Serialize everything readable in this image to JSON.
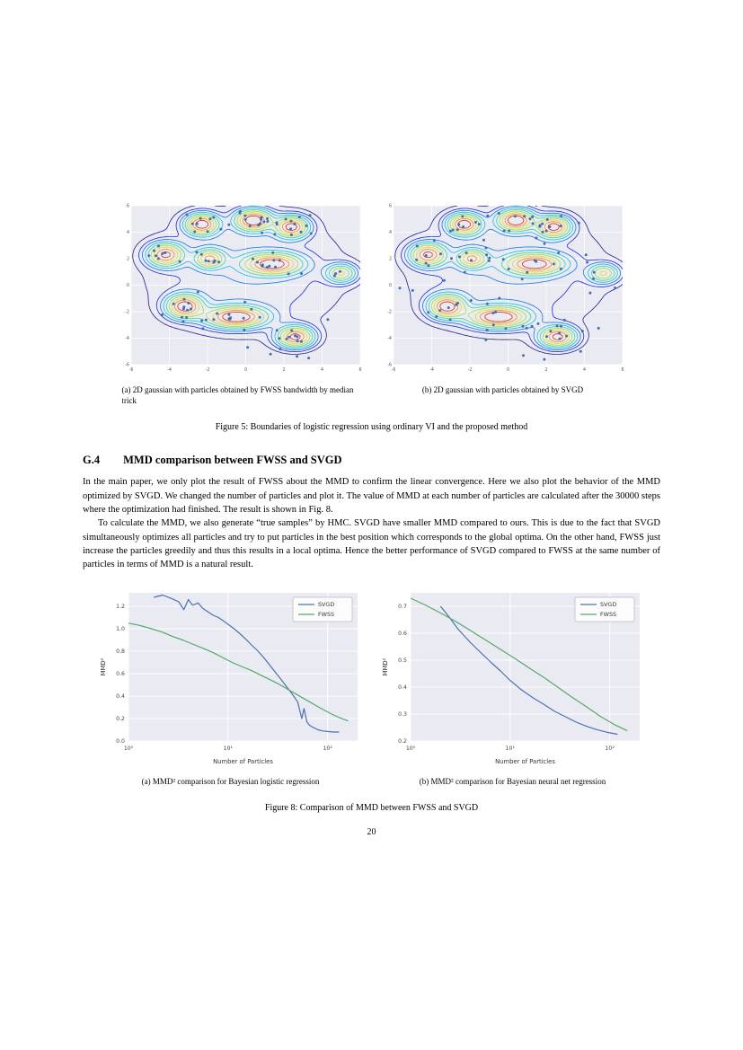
{
  "page_number": "20",
  "figure5": {
    "sub_a": "(a) 2D gaussian with particles obtained by FWSS bandwidth by median trick",
    "sub_b": "(b) 2D gaussian with particles obtained by SVGD",
    "caption": "Figure 5: Boundaries of logistic regression using ordinary VI and the proposed method"
  },
  "section": {
    "number": "G.4",
    "title": "MMD comparison between FWSS and SVGD"
  },
  "body": {
    "p1": "In the main paper, we only plot the result of FWSS about the MMD to confirm the linear convergence.  Here we also plot the behavior of the MMD optimized by SVGD. We changed the number of particles and plot it.  The value of MMD at each number of particles are calculated after the 30000 steps where the optimization had finished. The result is shown in Fig. 8.",
    "p2": "To calculate the MMD, we also generate “true samples” by HMC. SVGD have smaller MMD compared to ours. This is due to the fact that SVGD simultaneously optimizes all particles and try to put particles in the best position which corresponds to the global optima.  On the other hand, FWSS just increase the particles greedily and thus this results in a local optima.  Hence the better performance of SVGD compared to FWSS at the same number of particles in terms of MMD is a natural result."
  },
  "figure8": {
    "sub_a": "(a) MMD² comparison for Bayesian logistic regression",
    "sub_b": "(b) MMD² comparison for Bayesian neural net regression",
    "caption": "Figure 8: Comparison of MMD between FWSS and SVGD"
  },
  "chart_data": [
    {
      "type": "line",
      "title": "",
      "xlabel": "Number of Particles",
      "ylabel": "MMD²",
      "xscale": "log",
      "xlim": [
        1,
        200
      ],
      "ylim": [
        0.0,
        1.32
      ],
      "yticks": [
        0.0,
        0.2,
        0.4,
        0.6,
        0.8,
        1.0,
        1.2
      ],
      "ytick_labels": [
        "0.0",
        "0.2",
        "0.4",
        "0.6",
        "0.8",
        "1.0",
        "1.2"
      ],
      "xticks": [
        1,
        10,
        100
      ],
      "xtick_labels": [
        "10⁰",
        "10¹",
        "10²"
      ],
      "grid": true,
      "legend_position": "upper right",
      "series": [
        {
          "name": "SVGD",
          "color": "#4c72b0",
          "x": [
            1.8,
            2.2,
            2.7,
            3.2,
            3.6,
            4.0,
            4.4,
            5.0,
            5.6,
            6.3,
            7.1,
            8,
            9,
            10,
            11.5,
            13,
            15,
            17,
            20,
            23,
            26,
            30,
            34,
            39,
            44,
            50,
            55,
            58,
            62,
            66,
            72,
            80,
            90,
            100,
            115,
            130
          ],
          "y": [
            1.28,
            1.3,
            1.27,
            1.24,
            1.17,
            1.26,
            1.21,
            1.23,
            1.18,
            1.15,
            1.12,
            1.1,
            1.07,
            1.04,
            1.0,
            0.96,
            0.91,
            0.86,
            0.8,
            0.74,
            0.68,
            0.61,
            0.55,
            0.48,
            0.42,
            0.35,
            0.2,
            0.29,
            0.17,
            0.14,
            0.12,
            0.1,
            0.09,
            0.085,
            0.08,
            0.08
          ]
        },
        {
          "name": "FWSS",
          "color": "#55a868",
          "x": [
            1,
            1.3,
            1.7,
            2.2,
            2.8,
            3.5,
            4.5,
            5.5,
            7,
            9,
            11,
            14,
            17,
            21,
            26,
            32,
            40,
            50,
            60,
            75,
            90,
            110,
            130,
            160
          ],
          "y": [
            1.05,
            1.03,
            1.0,
            0.97,
            0.93,
            0.9,
            0.86,
            0.83,
            0.79,
            0.74,
            0.7,
            0.66,
            0.63,
            0.59,
            0.55,
            0.51,
            0.46,
            0.41,
            0.37,
            0.32,
            0.28,
            0.24,
            0.21,
            0.18
          ]
        }
      ]
    },
    {
      "type": "line",
      "title": "",
      "xlabel": "Number of Particles",
      "ylabel": "MMD²",
      "xscale": "log",
      "xlim": [
        1,
        200
      ],
      "ylim": [
        0.2,
        0.75
      ],
      "yticks": [
        0.2,
        0.3,
        0.4,
        0.5,
        0.6,
        0.7
      ],
      "ytick_labels": [
        "0.2",
        "0.3",
        "0.4",
        "0.5",
        "0.6",
        "0.7"
      ],
      "xticks": [
        1,
        10,
        100
      ],
      "xtick_labels": [
        "10⁰",
        "10¹",
        "10²"
      ],
      "grid": true,
      "legend_position": "upper right",
      "series": [
        {
          "name": "SVGD",
          "color": "#4c72b0",
          "x": [
            2,
            2.5,
            3,
            4,
            5,
            6.5,
            8,
            10,
            13,
            17,
            22,
            28,
            36,
            46,
            60,
            75,
            95,
            120
          ],
          "y": [
            0.7,
            0.655,
            0.615,
            0.565,
            0.53,
            0.49,
            0.46,
            0.425,
            0.39,
            0.36,
            0.335,
            0.31,
            0.29,
            0.27,
            0.253,
            0.242,
            0.232,
            0.225
          ]
        },
        {
          "name": "FWSS",
          "color": "#55a868",
          "x": [
            1,
            1.4,
            2,
            2.8,
            4,
            5.5,
            8,
            11,
            16,
            22,
            30,
            42,
            58,
            80,
            110,
            150
          ],
          "y": [
            0.73,
            0.705,
            0.675,
            0.645,
            0.61,
            0.578,
            0.54,
            0.508,
            0.468,
            0.435,
            0.4,
            0.362,
            0.328,
            0.292,
            0.262,
            0.238
          ]
        }
      ]
    }
  ],
  "contour_data": [
    {
      "name": "fwss",
      "xlim": [
        -6,
        6
      ],
      "ylim": [
        -6,
        6
      ],
      "xticks": [
        -6,
        -4,
        -2,
        0,
        2,
        4,
        6
      ],
      "yticks": [
        -6,
        -4,
        -2,
        0,
        2,
        4,
        6
      ],
      "levels": [
        0.05,
        0.1,
        0.16,
        0.24,
        0.34,
        0.46,
        0.6,
        0.75,
        0.9
      ],
      "level_colors": [
        "#282898",
        "#2233dd",
        "#1e7ae6",
        "#1fc0e8",
        "#3fd6a0",
        "#9fe04a",
        "#e8d832",
        "#f09022",
        "#d83018"
      ],
      "background": "#eaeaf2",
      "particle_color": "#3a68ad",
      "seed": 7,
      "spread_scale": 0.85,
      "clusters": [
        {
          "x": -2.3,
          "y": 4.6,
          "sx": 0.55,
          "sy": 0.5,
          "w": 1.0,
          "n": 10
        },
        {
          "x": 0.4,
          "y": 4.9,
          "sx": 0.6,
          "sy": 0.5,
          "w": 1.05,
          "n": 14
        },
        {
          "x": 2.4,
          "y": 4.4,
          "sx": 0.55,
          "sy": 0.5,
          "w": 0.95,
          "n": 12
        },
        {
          "x": -4.2,
          "y": 2.3,
          "sx": 0.6,
          "sy": 0.55,
          "w": 0.9,
          "n": 8
        },
        {
          "x": -1.9,
          "y": 2.0,
          "sx": 0.5,
          "sy": 0.45,
          "w": 0.7,
          "n": 7
        },
        {
          "x": 1.4,
          "y": 1.6,
          "sx": 0.95,
          "sy": 0.5,
          "w": 0.95,
          "n": 12
        },
        {
          "x": -3.2,
          "y": -1.6,
          "sx": 0.6,
          "sy": 0.55,
          "w": 1.0,
          "n": 12
        },
        {
          "x": -0.5,
          "y": -2.4,
          "sx": 1.0,
          "sy": 0.5,
          "w": 1.05,
          "n": 14
        },
        {
          "x": 2.6,
          "y": -3.9,
          "sx": 0.6,
          "sy": 0.5,
          "w": 0.95,
          "n": 11
        },
        {
          "x": 5.0,
          "y": 0.9,
          "sx": 0.5,
          "sy": 0.45,
          "w": 0.58,
          "n": 3
        },
        {
          "x": 0.0,
          "y": 0.9,
          "sx": 3.5,
          "sy": 3.2,
          "w": 0.16,
          "n": 0
        }
      ],
      "extra_particles": [
        [
          1.3,
          -5.2
        ],
        [
          3.3,
          -5.5
        ],
        [
          0.1,
          -4.7
        ],
        [
          4.3,
          -2.6
        ]
      ]
    },
    {
      "name": "svgd",
      "xlim": [
        -6,
        6
      ],
      "ylim": [
        -6,
        6
      ],
      "xticks": [
        -6,
        -4,
        -2,
        0,
        2,
        4,
        6
      ],
      "yticks": [
        -6,
        -4,
        -2,
        0,
        2,
        4,
        6
      ],
      "levels": [
        0.05,
        0.1,
        0.16,
        0.24,
        0.34,
        0.46,
        0.6,
        0.75,
        0.9
      ],
      "level_colors": [
        "#282898",
        "#2233dd",
        "#1e7ae6",
        "#1fc0e8",
        "#3fd6a0",
        "#9fe04a",
        "#e8d832",
        "#f09022",
        "#d83018"
      ],
      "background": "#eaeaf2",
      "particle_color": "#3a68ad",
      "seed": 29,
      "spread_scale": 1.25,
      "clusters": [
        {
          "x": -2.3,
          "y": 4.6,
          "sx": 0.55,
          "sy": 0.5,
          "w": 1.0,
          "n": 10
        },
        {
          "x": 0.4,
          "y": 4.9,
          "sx": 0.6,
          "sy": 0.5,
          "w": 1.05,
          "n": 11
        },
        {
          "x": 2.4,
          "y": 4.4,
          "sx": 0.55,
          "sy": 0.5,
          "w": 0.95,
          "n": 10
        },
        {
          "x": -4.2,
          "y": 2.3,
          "sx": 0.6,
          "sy": 0.55,
          "w": 0.9,
          "n": 9
        },
        {
          "x": -1.9,
          "y": 2.0,
          "sx": 0.5,
          "sy": 0.45,
          "w": 0.7,
          "n": 8
        },
        {
          "x": 1.4,
          "y": 1.6,
          "sx": 0.95,
          "sy": 0.5,
          "w": 0.95,
          "n": 11
        },
        {
          "x": -3.2,
          "y": -1.6,
          "sx": 0.6,
          "sy": 0.55,
          "w": 1.0,
          "n": 10
        },
        {
          "x": -0.5,
          "y": -2.4,
          "sx": 1.0,
          "sy": 0.5,
          "w": 1.05,
          "n": 11
        },
        {
          "x": 2.6,
          "y": -3.9,
          "sx": 0.6,
          "sy": 0.5,
          "w": 0.95,
          "n": 10
        },
        {
          "x": 5.0,
          "y": 0.9,
          "sx": 0.5,
          "sy": 0.45,
          "w": 0.58,
          "n": 4
        },
        {
          "x": 0.0,
          "y": 0.9,
          "sx": 3.5,
          "sy": 3.2,
          "w": 0.16,
          "n": 0
        }
      ],
      "extra_particles": [
        [
          0.8,
          -5.3
        ],
        [
          3.8,
          -5.0
        ],
        [
          5.6,
          -0.2
        ],
        [
          -5.0,
          -0.4
        ],
        [
          1.9,
          -5.6
        ]
      ]
    }
  ]
}
